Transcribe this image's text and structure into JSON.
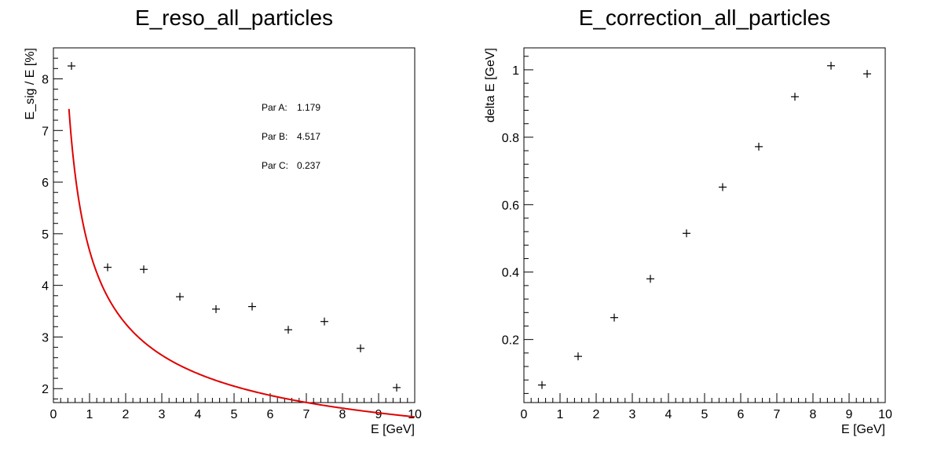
{
  "chart_data": [
    {
      "type": "scatter",
      "title": "E_reso_all_particles",
      "xlabel": "E [GeV]",
      "ylabel": "E_sig / E [%]",
      "xlim": [
        0,
        10
      ],
      "ylim": [
        1.73,
        8.6
      ],
      "x_ticks": [
        0,
        1,
        2,
        3,
        4,
        5,
        6,
        7,
        8,
        9,
        10
      ],
      "y_ticks": [
        2,
        3,
        4,
        5,
        6,
        7,
        8
      ],
      "grid": false,
      "series": [
        {
          "x": [
            0.5,
            1.5,
            2.5,
            3.5,
            4.5,
            5.5,
            6.5,
            7.5,
            8.5,
            9.5
          ],
          "values": [
            8.25,
            4.35,
            4.31,
            3.78,
            3.54,
            3.59,
            3.14,
            3.3,
            2.78,
            2.02
          ]
        }
      ],
      "fit": {
        "color": "#e00000",
        "x_range": [
          0.43,
          10
        ],
        "params": [
          {
            "label": "Par A:",
            "value": "1.179",
            "num": 1.179
          },
          {
            "label": "Par B:",
            "value": "4.517",
            "num": 4.517
          },
          {
            "label": "Par C:",
            "value": "0.237",
            "num": 0.237
          }
        ]
      }
    },
    {
      "type": "scatter",
      "title": "E_correction_all_particles",
      "xlabel": "E [GeV]",
      "ylabel": "delta E [GeV]",
      "xlim": [
        0,
        10
      ],
      "ylim": [
        0.013,
        1.065
      ],
      "x_ticks": [
        0,
        1,
        2,
        3,
        4,
        5,
        6,
        7,
        8,
        9,
        10
      ],
      "y_ticks": [
        0.2,
        0.4,
        0.6,
        0.8,
        1
      ],
      "grid": false,
      "series": [
        {
          "x": [
            0.5,
            1.5,
            2.5,
            3.5,
            4.5,
            5.5,
            6.5,
            7.5,
            8.5,
            9.5
          ],
          "values": [
            0.065,
            0.15,
            0.265,
            0.38,
            0.515,
            0.652,
            0.772,
            0.92,
            1.012,
            0.988
          ]
        }
      ]
    }
  ]
}
